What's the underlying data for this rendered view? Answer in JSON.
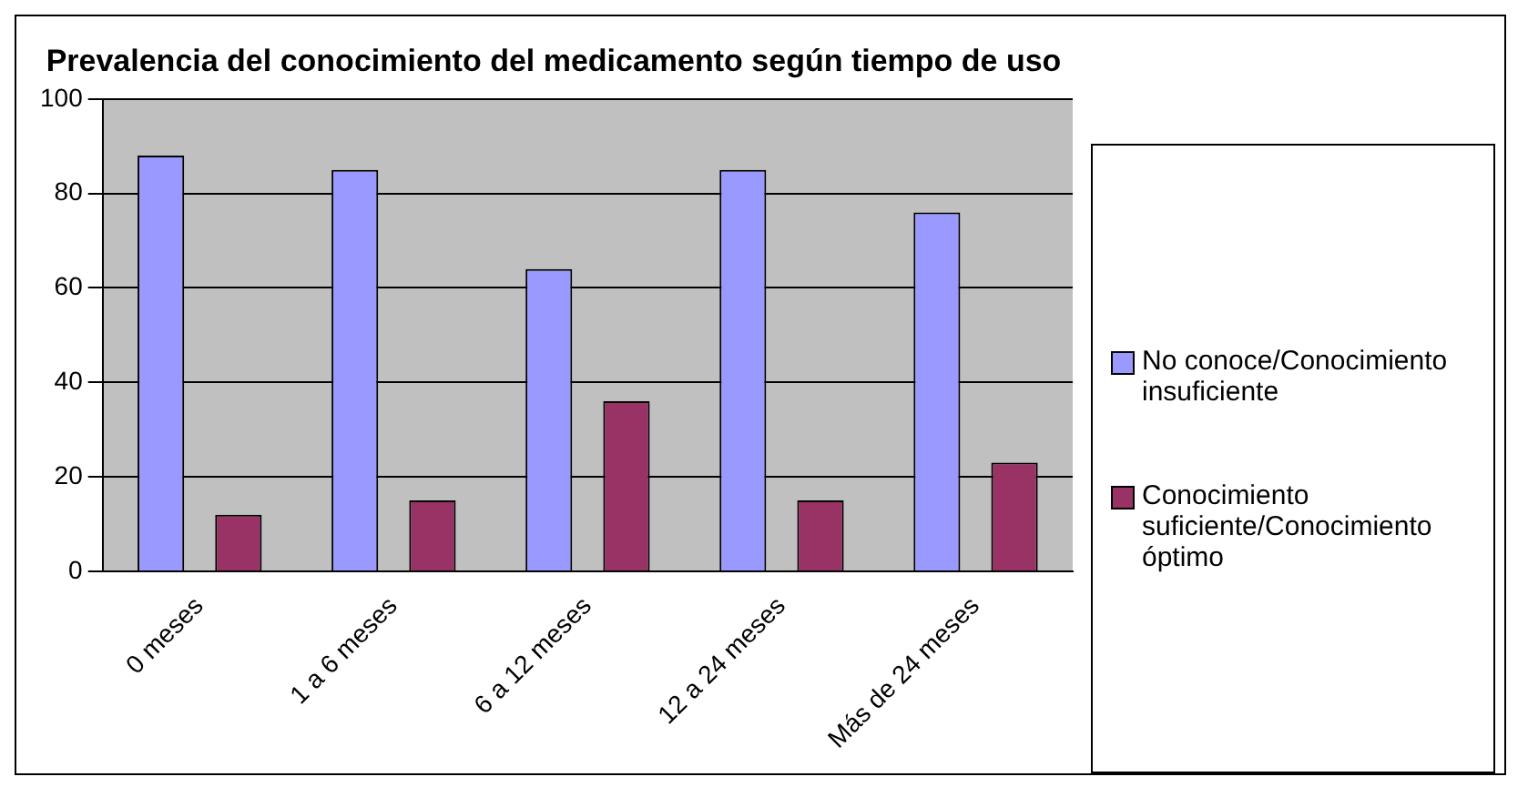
{
  "chart_data": {
    "type": "bar",
    "title": "Prevalencia del conocimiento del medicamento según tiempo de uso",
    "categories": [
      "0 meses",
      "1 a 6 meses",
      "6 a 12 meses",
      "12 a 24 meses",
      "Más de 24 meses"
    ],
    "series": [
      {
        "name": "No conoce/Conocimiento insuficiente",
        "color": "#9999ff",
        "values": [
          88,
          85,
          64,
          85,
          76
        ]
      },
      {
        "name": "Conocimiento suficiente/Conocimiento óptimo",
        "color": "#993366",
        "values": [
          12,
          15,
          36,
          15,
          23
        ]
      }
    ],
    "ylim": [
      0,
      100
    ],
    "yticks": [
      0,
      20,
      40,
      60,
      80,
      100
    ],
    "grid": "y",
    "legend": "right"
  }
}
